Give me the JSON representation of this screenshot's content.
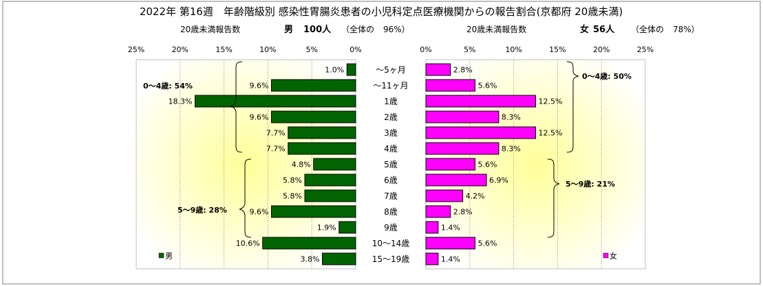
{
  "title": "2022年 第16週　年齢階級別 感染性胃腸炎患者の小児科定点医療機関からの報告割合(京都府 20歳未満)",
  "left_header": {
    "label": "20歳未満報告数",
    "sex": "男",
    "count": "100人",
    "share_prefix": "（全体の",
    "share_value": "96%）"
  },
  "right_header": {
    "label": "20歳未満報告数",
    "sex": "女",
    "count": "56人",
    "share_prefix": "（全体の",
    "share_value": "78%）"
  },
  "left_axis_ticks": [
    "25%",
    "20%",
    "15%",
    "10%",
    "5%",
    "0%"
  ],
  "right_axis_ticks": [
    "0%",
    "5%",
    "10%",
    "15%",
    "20%",
    "25%"
  ],
  "legend": {
    "male": "男",
    "female": "女"
  },
  "brackets": {
    "male_0_4": "0～4歳: 54%",
    "male_5_9": "5～9歳: 28%",
    "female_0_4": "0～4歳: 50%",
    "female_5_9": "5～9歳: 21%"
  },
  "colors": {
    "male": "#006400",
    "female": "#ff00ff",
    "background_glow": "#ffff99"
  },
  "chart_data": {
    "type": "bar",
    "title": "2022年 第16週　年齢階級別 感染性胃腸炎患者の小児科定点医療機関からの報告割合(京都府 20歳未満)",
    "categories": [
      "～5ヶ月",
      "～11ヶ月",
      "1歳",
      "2歳",
      "3歳",
      "4歳",
      "5歳",
      "6歳",
      "7歳",
      "8歳",
      "9歳",
      "10～14歳",
      "15～19歳"
    ],
    "series": [
      {
        "name": "男",
        "values": [
          1.0,
          9.6,
          18.3,
          9.6,
          7.7,
          7.7,
          4.8,
          5.8,
          5.8,
          9.6,
          1.9,
          10.6,
          3.8
        ],
        "labels": [
          "1.0%",
          "9.6%",
          "18.3%",
          "9.6%",
          "7.7%",
          "7.7%",
          "4.8%",
          "5.8%",
          "5.8%",
          "9.6%",
          "1.9%",
          "10.6%",
          "3.8%"
        ]
      },
      {
        "name": "女",
        "values": [
          2.8,
          5.6,
          12.5,
          8.3,
          12.5,
          8.3,
          5.6,
          6.9,
          4.2,
          2.8,
          1.4,
          5.6,
          1.4
        ],
        "labels": [
          "2.8%",
          "5.6%",
          "12.5%",
          "8.3%",
          "12.5%",
          "8.3%",
          "5.6%",
          "6.9%",
          "4.2%",
          "2.8%",
          "1.4%",
          "5.6%",
          "1.4%"
        ]
      }
    ],
    "xlim": [
      0,
      25
    ],
    "grid": true,
    "legend": "bottom"
  }
}
